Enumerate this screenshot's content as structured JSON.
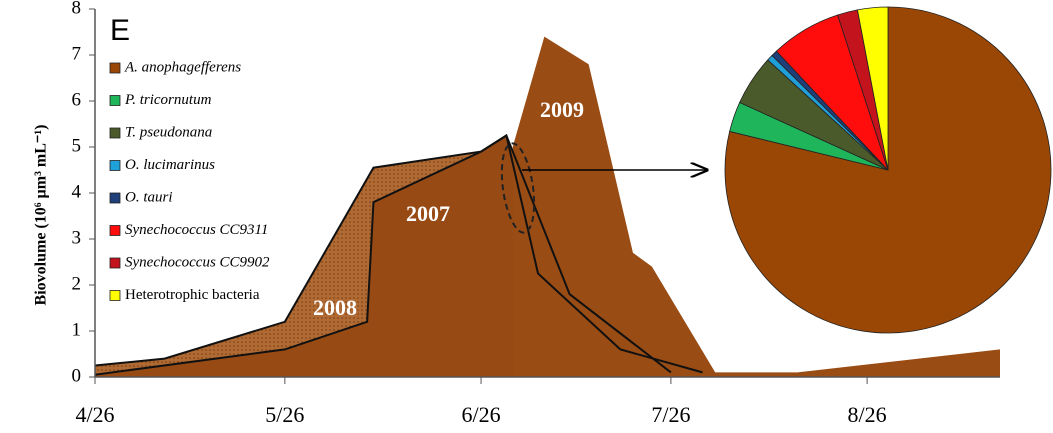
{
  "chart_data": [
    {
      "type": "area",
      "panel_label": "E",
      "y_label": "Biovolume (10⁶ µm³ mL⁻¹)",
      "xlim": [
        116,
        259
      ],
      "xticks": [
        {
          "value": 116,
          "label": "4/26"
        },
        {
          "value": 146,
          "label": "5/26"
        },
        {
          "value": 177,
          "label": "6/26"
        },
        {
          "value": 207,
          "label": "7/26"
        },
        {
          "value": 238,
          "label": "8/26"
        }
      ],
      "ylim": [
        0,
        8
      ],
      "yticks": [
        0,
        1,
        2,
        3,
        4,
        5,
        6,
        7,
        8
      ],
      "series": [
        {
          "name": "2008",
          "color": "#a8642e",
          "x": [
            116,
            127,
            146,
            160,
            177,
            181,
            186,
            199,
            212
          ],
          "values": [
            0.25,
            0.4,
            1.2,
            4.55,
            4.9,
            5.25,
            2.25,
            0.6,
            0.1
          ]
        },
        {
          "name": "2007",
          "color": "#974a14",
          "x": [
            116,
            146,
            159,
            160,
            177,
            181,
            191,
            207
          ],
          "values": [
            0.05,
            0.6,
            1.2,
            3.8,
            4.9,
            5.25,
            1.8,
            0.1
          ]
        },
        {
          "name": "2009",
          "color": "#9a4c15",
          "x": [
            182,
            187,
            194,
            201,
            204,
            214,
            227,
            259
          ],
          "values": [
            5.0,
            7.4,
            6.8,
            2.7,
            2.4,
            0.1,
            0.1,
            0.6
          ]
        }
      ]
    },
    {
      "type": "pie",
      "categories": [
        "A. anophagefferens",
        "P. tricornutum",
        "T. pseudonana",
        "O. lucimarinus",
        "O. tauri",
        "Synechococcus CC9311",
        "Synechococcus CC9902",
        "Heterotrophic bacteria"
      ],
      "colors": [
        "#9a4706",
        "#1fb55a",
        "#4a5a2a",
        "#1fa0d8",
        "#1f3f7a",
        "#ff0d0d",
        "#c3131d",
        "#ffff00"
      ],
      "values": [
        78.8,
        3,
        5,
        0.6,
        0.6,
        7,
        2,
        3
      ]
    }
  ]
}
